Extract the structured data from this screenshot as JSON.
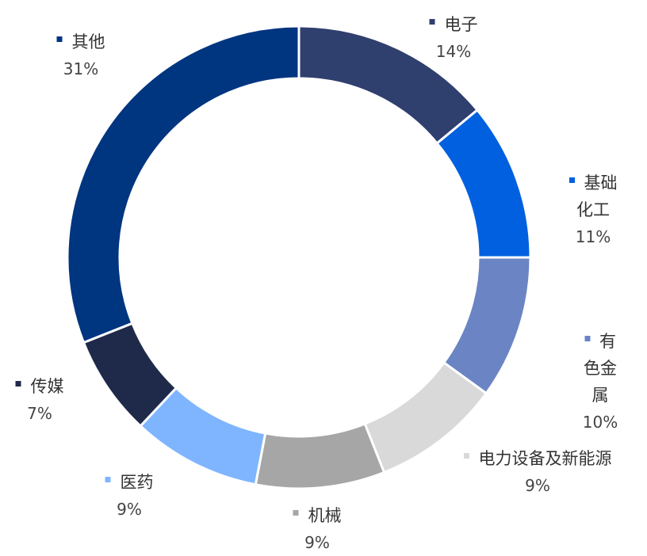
{
  "chart_data": {
    "type": "donut",
    "categories": [
      "电子",
      "基础化工",
      "有色金属",
      "电力设备及新能源",
      "机械",
      "医药",
      "传媒",
      "其他"
    ],
    "values": [
      14,
      11,
      10,
      9,
      9,
      9,
      7,
      31
    ],
    "value_labels": [
      "14%",
      "11%",
      "10%",
      "9%",
      "9%",
      "9%",
      "7%",
      "31%"
    ],
    "colors": [
      "#2f3f6e",
      "#0060df",
      "#6b84c4",
      "#d9d9d9",
      "#a6a6a6",
      "#7fb5ff",
      "#1f2a4a",
      "#003580"
    ]
  }
}
